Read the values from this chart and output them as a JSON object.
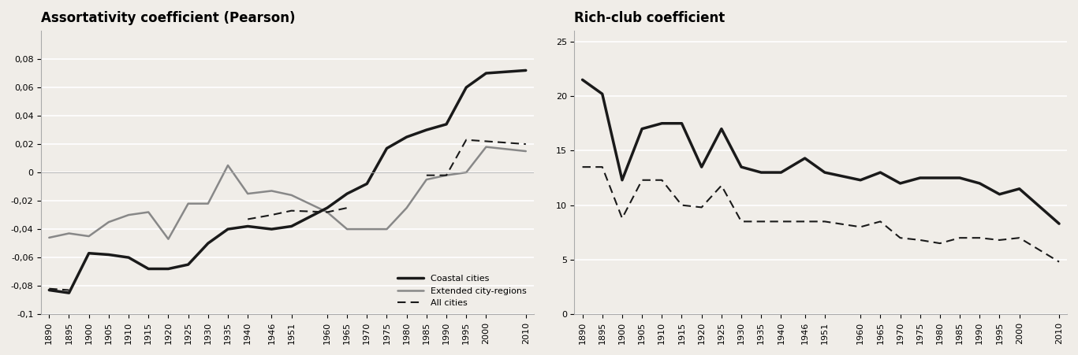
{
  "years_left": [
    1890,
    1895,
    1900,
    1905,
    1910,
    1915,
    1920,
    1925,
    1930,
    1935,
    1940,
    1946,
    1951,
    1960,
    1965,
    1970,
    1975,
    1980,
    1985,
    1990,
    1995,
    2000,
    2010
  ],
  "coastal_assort": [
    -0.083,
    -0.085,
    -0.057,
    -0.058,
    -0.06,
    -0.068,
    -0.068,
    -0.065,
    -0.05,
    -0.04,
    -0.038,
    -0.04,
    -0.038,
    -0.025,
    -0.015,
    -0.008,
    0.017,
    0.025,
    0.03,
    0.034,
    0.06,
    0.07,
    0.072
  ],
  "extended_assort": [
    -0.046,
    -0.043,
    -0.045,
    -0.035,
    -0.03,
    -0.028,
    -0.047,
    -0.022,
    -0.022,
    0.005,
    -0.015,
    -0.013,
    -0.016,
    -0.028,
    -0.04,
    -0.04,
    -0.04,
    -0.025,
    -0.005,
    -0.002,
    0.0,
    0.018,
    0.015
  ],
  "all_assort": [
    -0.082,
    -0.083,
    null,
    null,
    null,
    null,
    null,
    null,
    null,
    null,
    -0.033,
    -0.03,
    -0.027,
    -0.028,
    -0.025,
    null,
    null,
    null,
    -0.002,
    -0.002,
    0.023,
    0.022,
    0.02
  ],
  "years_right": [
    1890,
    1895,
    1900,
    1905,
    1910,
    1915,
    1920,
    1925,
    1930,
    1935,
    1940,
    1946,
    1951,
    1960,
    1965,
    1970,
    1975,
    1980,
    1985,
    1990,
    1995,
    2000,
    2010
  ],
  "coastal_rich": [
    21.5,
    20.2,
    12.3,
    17.0,
    17.5,
    17.5,
    13.5,
    17.0,
    13.5,
    13.0,
    13.0,
    14.3,
    13.0,
    12.3,
    13.0,
    12.0,
    12.5,
    12.5,
    12.5,
    12.0,
    11.0,
    11.5,
    8.3
  ],
  "all_rich": [
    13.5,
    13.5,
    8.8,
    12.3,
    12.3,
    10.0,
    9.8,
    11.8,
    8.5,
    8.5,
    8.5,
    8.5,
    8.5,
    8.0,
    8.5,
    7.0,
    6.8,
    6.5,
    7.0,
    7.0,
    6.8,
    7.0,
    4.8
  ],
  "left_title": "Assortativity coefficient (Pearson)",
  "right_title": "Rich-club coefficient",
  "legend_coastal": "Coastal cities",
  "legend_extended": "Extended city-regions",
  "legend_all": "All cities",
  "left_ylim": [
    -0.1,
    0.1
  ],
  "left_yticks": [
    -0.1,
    -0.08,
    -0.06,
    -0.04,
    -0.02,
    0,
    0.02,
    0.04,
    0.06,
    0.08
  ],
  "right_ylim": [
    0,
    26
  ],
  "right_yticks": [
    0,
    5,
    10,
    15,
    20,
    25
  ],
  "color_coastal": "#1a1a1a",
  "color_extended": "#888888",
  "color_all": "#1a1a1a",
  "bg_color": "#f0ede8",
  "border_color": "#aaaaaa"
}
